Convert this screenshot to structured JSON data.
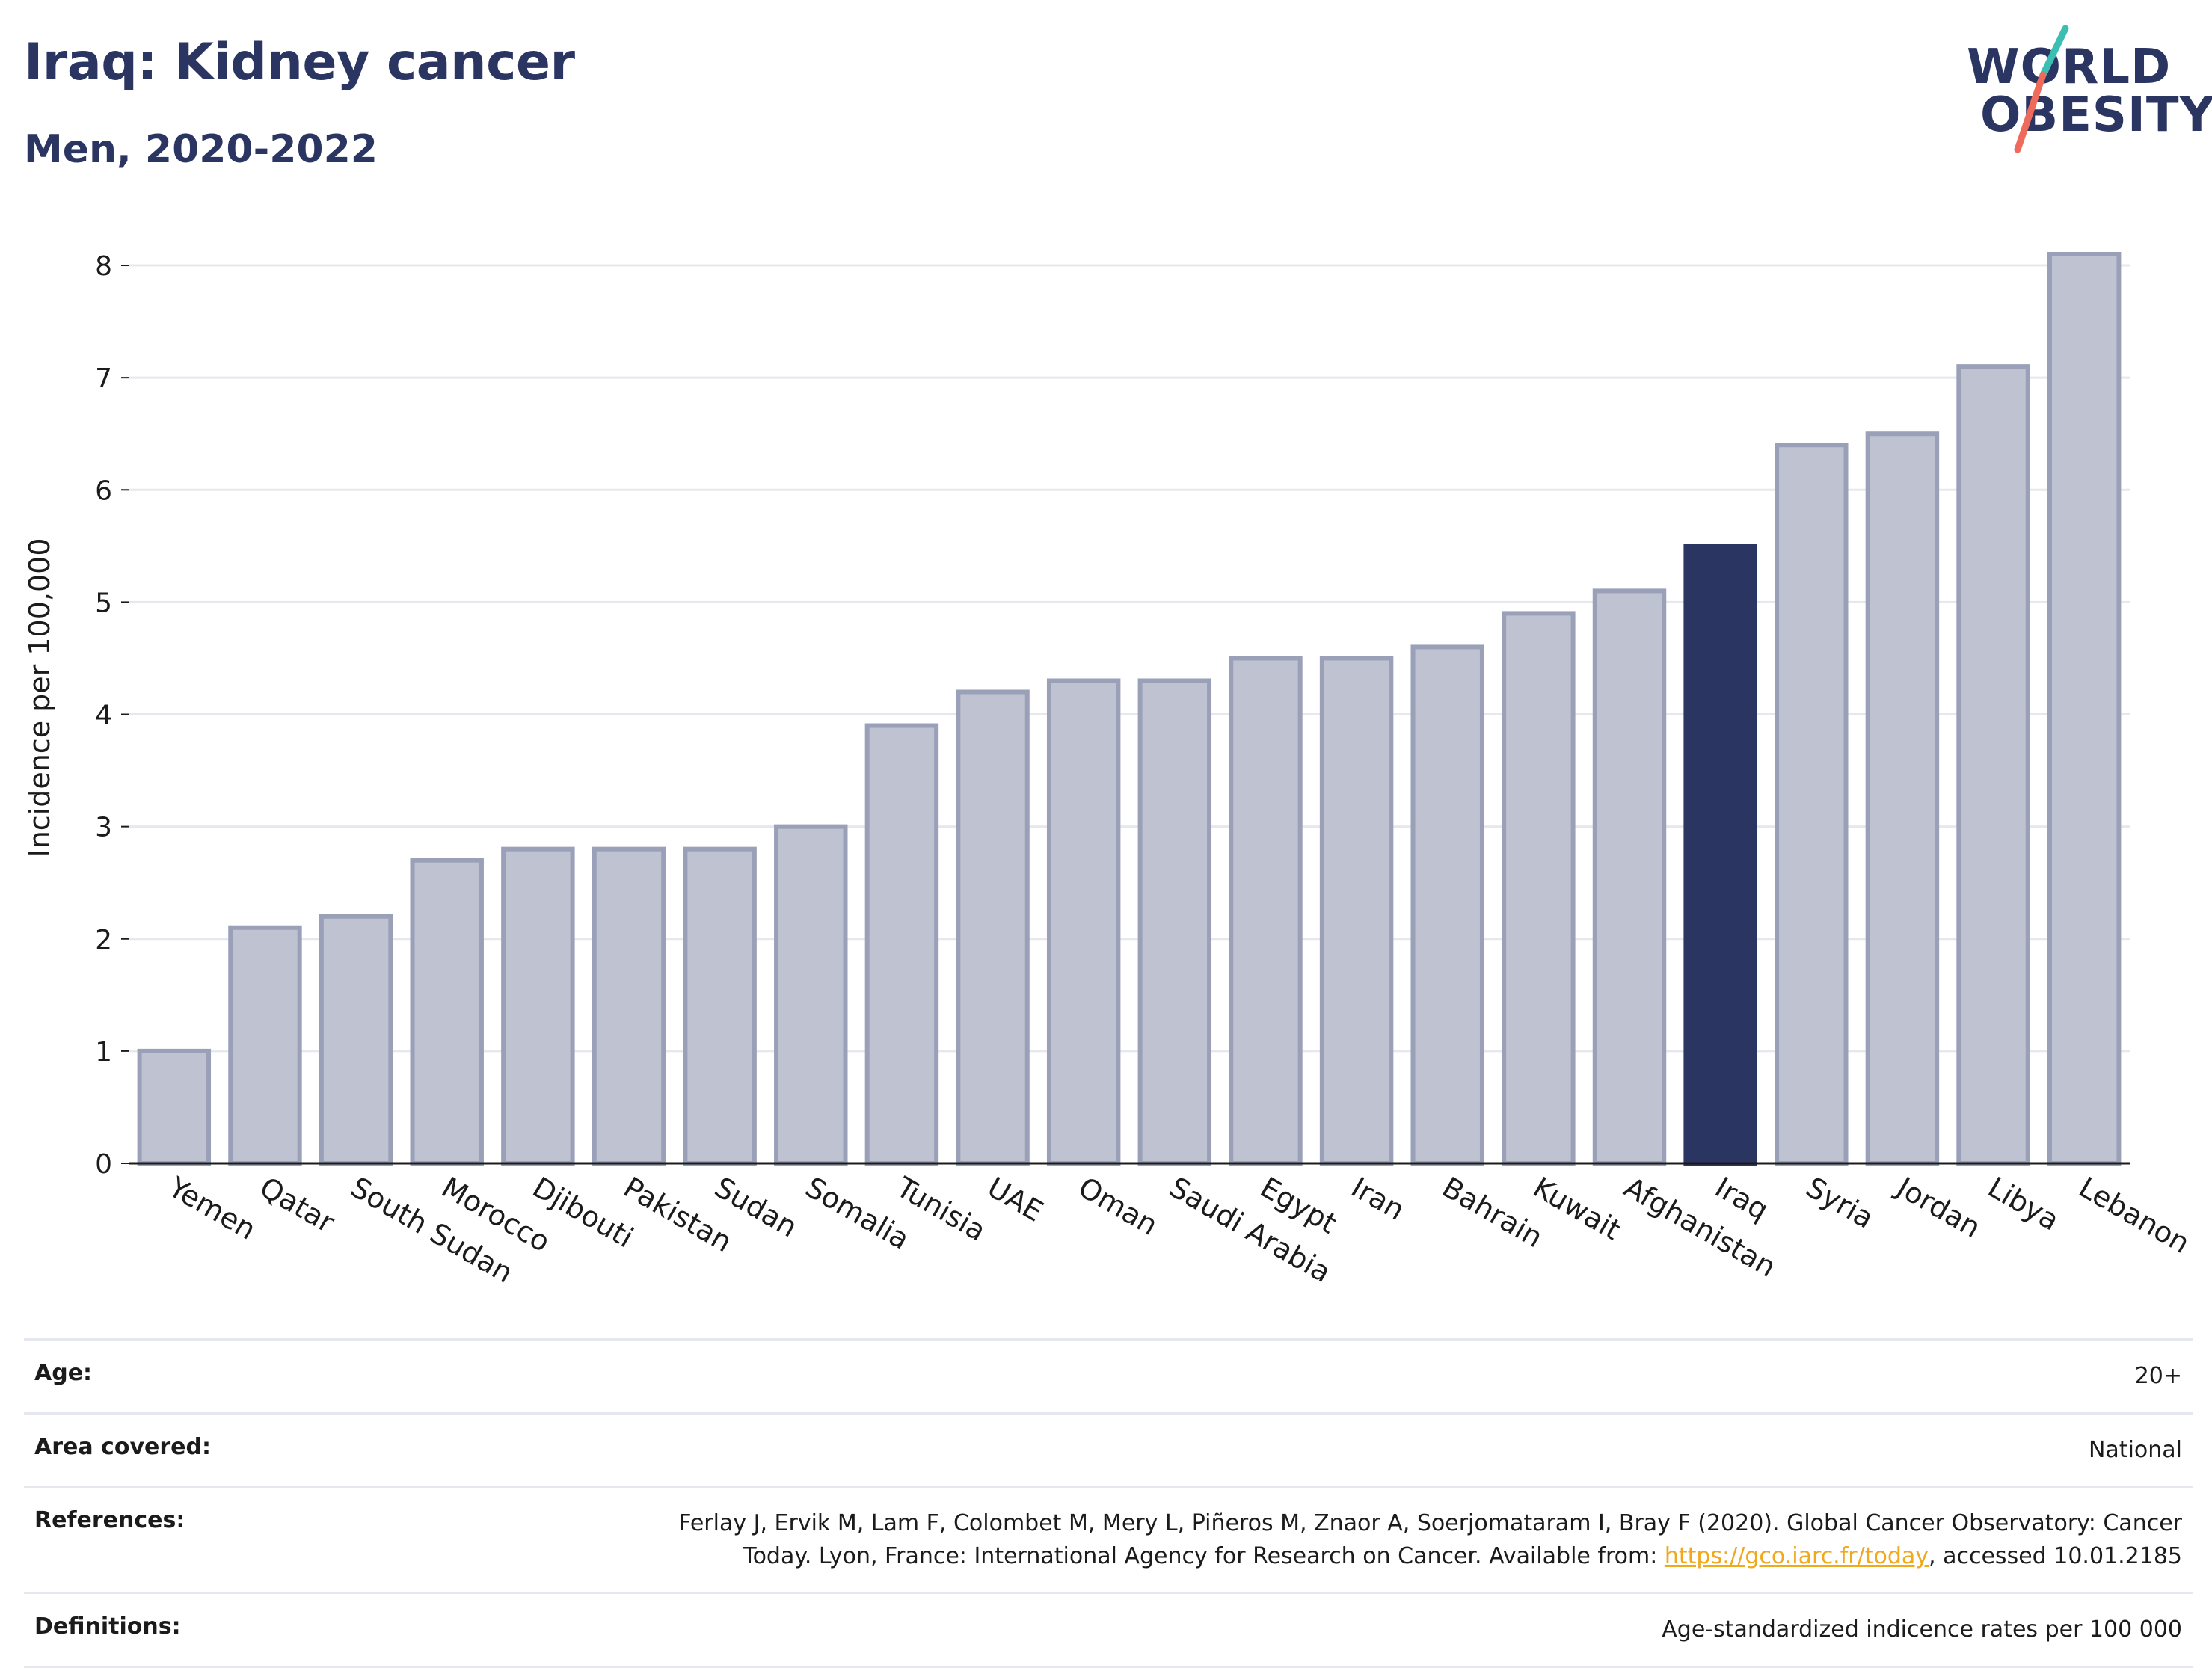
{
  "header": {
    "title": "Iraq: Kidney cancer",
    "subtitle": "Men, 2020-2022"
  },
  "logo": {
    "line1": "WORLD",
    "line2": "OBESITY",
    "accent_teal": "#3bbfb3",
    "accent_coral": "#ee6a5b"
  },
  "colors": {
    "bar": "#bfc2d0",
    "bar_border": "#9aa0b8",
    "highlight": "#2b3562",
    "grid": "#e7e8ee",
    "axis": "#1b1b1b"
  },
  "chart_data": {
    "type": "bar",
    "ylabel": "Incidence per 100,000",
    "xlabel": "",
    "ylim": [
      0,
      8.3
    ],
    "yticks": [
      0,
      1,
      2,
      3,
      4,
      5,
      6,
      7,
      8
    ],
    "grid": true,
    "highlight": "Iraq",
    "categories": [
      "Yemen",
      "Qatar",
      "South Sudan",
      "Morocco",
      "Djibouti",
      "Pakistan",
      "Sudan",
      "Somalia",
      "Tunisia",
      "UAE",
      "Oman",
      "Saudi Arabia",
      "Egypt",
      "Iran",
      "Bahrain",
      "Kuwait",
      "Afghanistan",
      "Iraq",
      "Syria",
      "Jordan",
      "Libya",
      "Lebanon"
    ],
    "values": [
      1.0,
      2.1,
      2.2,
      2.7,
      2.8,
      2.8,
      2.8,
      3.0,
      3.9,
      4.2,
      4.3,
      4.3,
      4.5,
      4.5,
      4.6,
      4.9,
      5.1,
      5.5,
      6.4,
      6.5,
      7.1,
      8.1
    ]
  },
  "info": {
    "age_label": "Age:",
    "age_value": "20+",
    "area_label": "Area covered:",
    "area_value": "National",
    "references_label": "References:",
    "references_text": "Ferlay J, Ervik M, Lam F, Colombet M, Mery L, Piñeros M, Znaor A, Soerjomataram I, Bray F (2020). Global Cancer Observatory: Cancer Today. Lyon, France: International Agency for Research on Cancer. Available from: ",
    "references_link": "https://gco.iarc.fr/today",
    "references_suffix": ", accessed 10.01.2185",
    "definitions_label": "Definitions:",
    "definitions_value": "Age-standardized indicence rates per 100 000"
  }
}
